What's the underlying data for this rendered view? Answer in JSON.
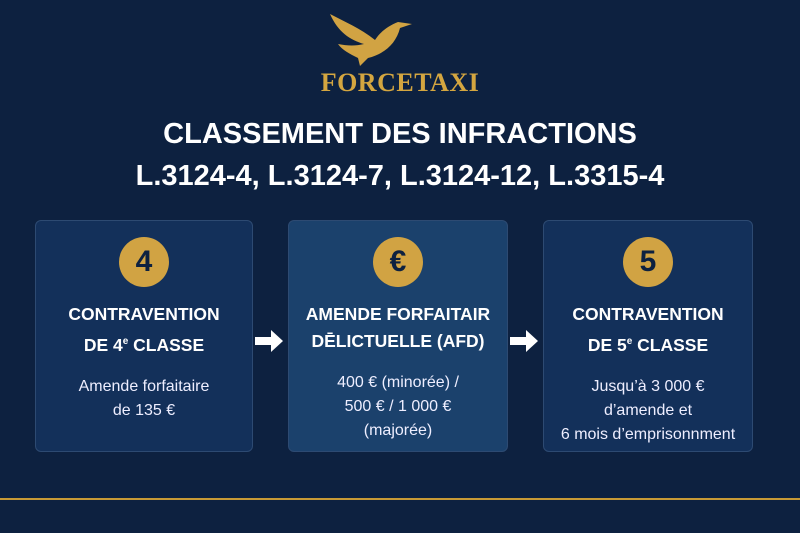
{
  "brand": "FORCETAXI",
  "title_line1": "CLASSEMENT DES INFRACTIONS",
  "title_line2": "L.3124-4, L.3124-7, L.3124-12, L.3315-4",
  "cards": [
    {
      "badge": "4",
      "head1": "CONTRAVENTION",
      "head2a": "DE 4",
      "head2sup": "e",
      "head2b": " CLASSE",
      "body": [
        "Amende forfaitaire",
        "de 135 €"
      ]
    },
    {
      "badge": "€",
      "head1": "AMENDE FORFAITAIR",
      "head2a": "DĒLICTUELLE (AFD)",
      "head2sup": "",
      "head2b": "",
      "body": [
        "400 € (minorée) /",
        "500 € / 1 000 €",
        "(majorée)"
      ]
    },
    {
      "badge": "5",
      "head1": "CONTRAVENTION",
      "head2a": "DE 5",
      "head2sup": "e",
      "head2b": " CLASSE",
      "body": [
        "Jusqu’à 3 000 €",
        "d’amende et",
        "6 mois d’emprisonnment"
      ]
    }
  ],
  "colors": {
    "background": "#0d2140",
    "gold": "#d1a343"
  }
}
